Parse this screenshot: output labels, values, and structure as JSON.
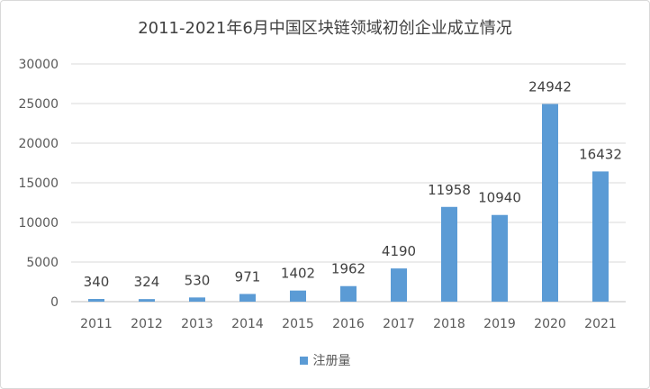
{
  "chart_data": {
    "type": "bar",
    "title": "2011-2021年6月中国区块链领域初创企业成立情况",
    "categories": [
      "2011",
      "2012",
      "2013",
      "2014",
      "2015",
      "2016",
      "2017",
      "2018",
      "2019",
      "2020",
      "2021"
    ],
    "series": [
      {
        "name": "注册量",
        "values": [
          340,
          324,
          530,
          971,
          1402,
          1962,
          4190,
          11958,
          10940,
          24942,
          16432
        ],
        "color": "#5b9bd5"
      }
    ],
    "ylim": [
      0,
      30000
    ],
    "yticks": [
      "0",
      "5000",
      "10000",
      "15000",
      "20000",
      "25000",
      "30000"
    ],
    "grid": true,
    "legend": "bottom"
  }
}
